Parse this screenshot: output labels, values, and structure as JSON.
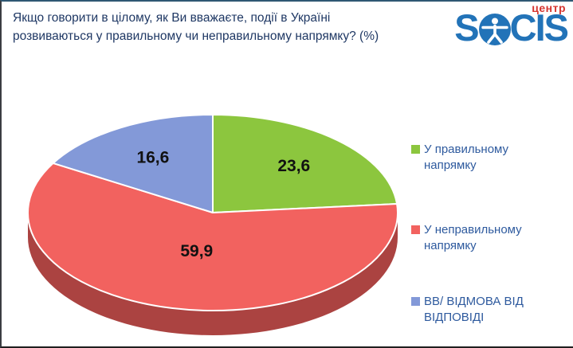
{
  "title": "Якщо говорити в цілому, як Ви вважаєте, події в Україні розвиваються у правильному чи неправильному напрямку? (%)",
  "logo": {
    "pre": "S",
    "post": "CIS",
    "sub": "центр",
    "figure_icon": "vitruvian-man-icon",
    "blue": "#2273b8",
    "red": "#d6342f"
  },
  "chart_data": {
    "type": "pie",
    "effect": "3d",
    "start_angle_deg": 0,
    "direction": "clockwise",
    "legend_position": "right",
    "title": "Якщо говорити в цілому, як Ви вважаєте, події в Україні розвиваються у правильному чи неправильному напрямку? (%)",
    "labels": [
      "У правильному напрямку",
      "У неправильному напрямку",
      "ВВ/ ВІДМОВА ВІД ВІДПОВІДІ"
    ],
    "values": [
      23.6,
      59.9,
      16.6
    ],
    "value_labels": [
      "23,6",
      "59,9",
      "16,6"
    ],
    "colors": [
      "#8cc63e",
      "#f2625f",
      "#8399d8"
    ],
    "side_colors": [
      "#6fa32c",
      "#ab4341",
      "#64789f"
    ],
    "label_color": "#111111",
    "slice_outline": "#ffffff"
  }
}
